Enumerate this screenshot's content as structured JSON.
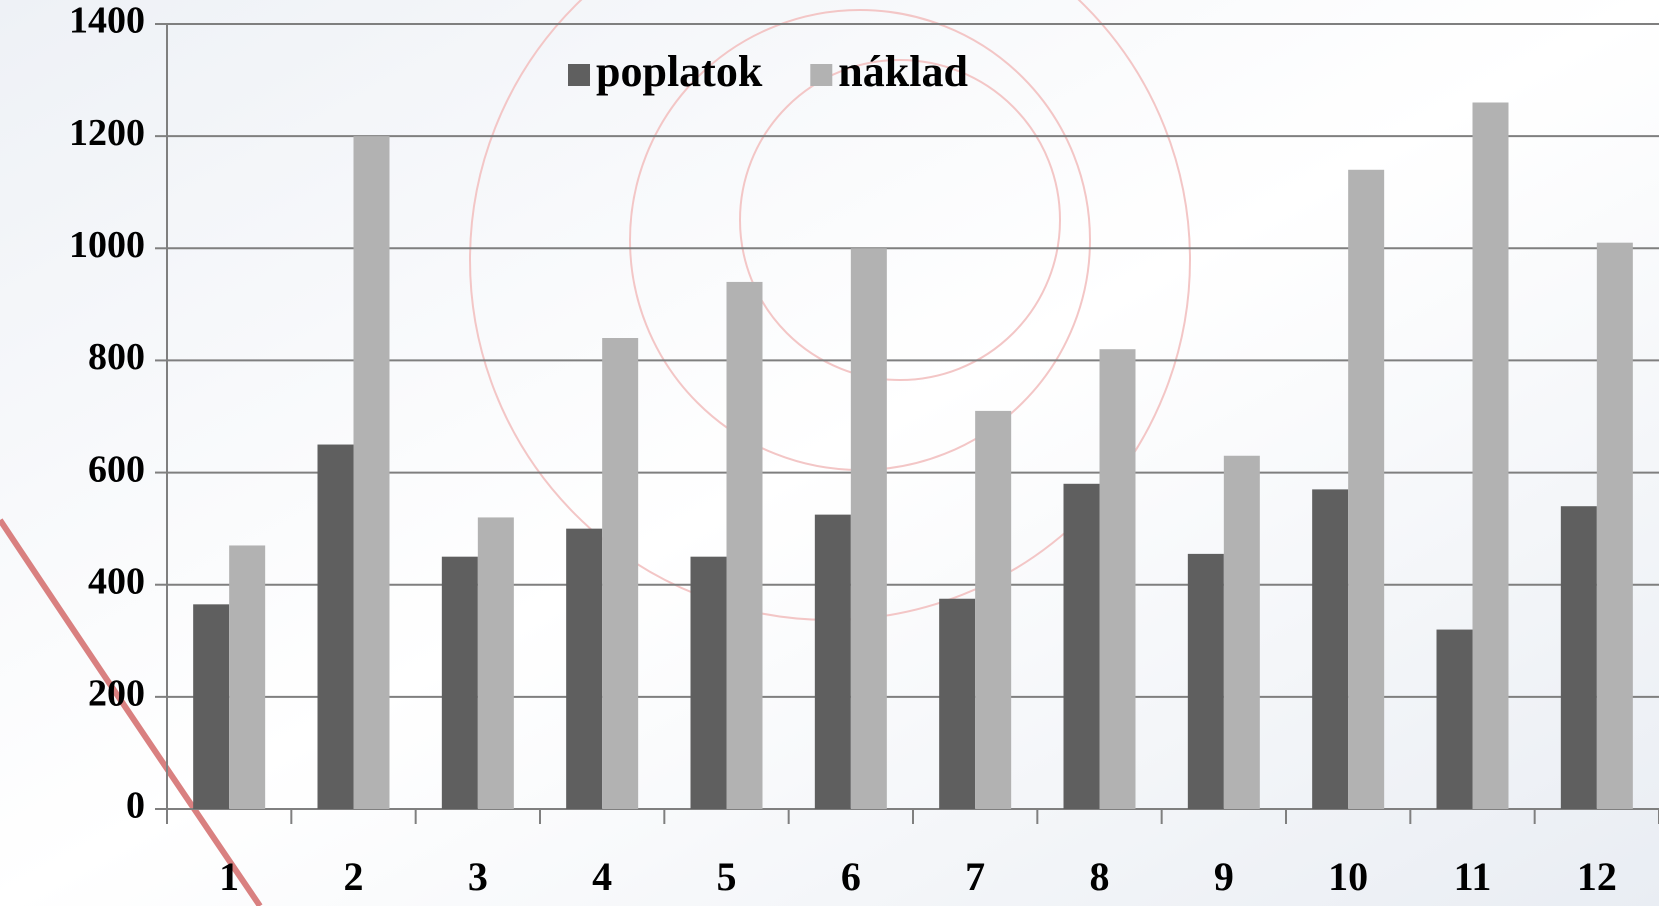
{
  "chart_data": {
    "type": "bar",
    "categories": [
      "1",
      "2",
      "3",
      "4",
      "5",
      "6",
      "7",
      "8",
      "9",
      "10",
      "11",
      "12"
    ],
    "series": [
      {
        "name": "poplatok",
        "color": "#5f5f5f",
        "values": [
          365,
          650,
          450,
          500,
          450,
          525,
          375,
          580,
          455,
          570,
          320,
          540
        ]
      },
      {
        "name": "náklad",
        "color": "#b2b2b2",
        "values": [
          470,
          1200,
          520,
          840,
          940,
          1000,
          710,
          820,
          630,
          1140,
          1260,
          1010
        ]
      }
    ],
    "ylim": [
      0,
      1400
    ],
    "yticks": [
      0,
      200,
      400,
      600,
      800,
      1000,
      1200,
      1400
    ],
    "grid": true
  }
}
